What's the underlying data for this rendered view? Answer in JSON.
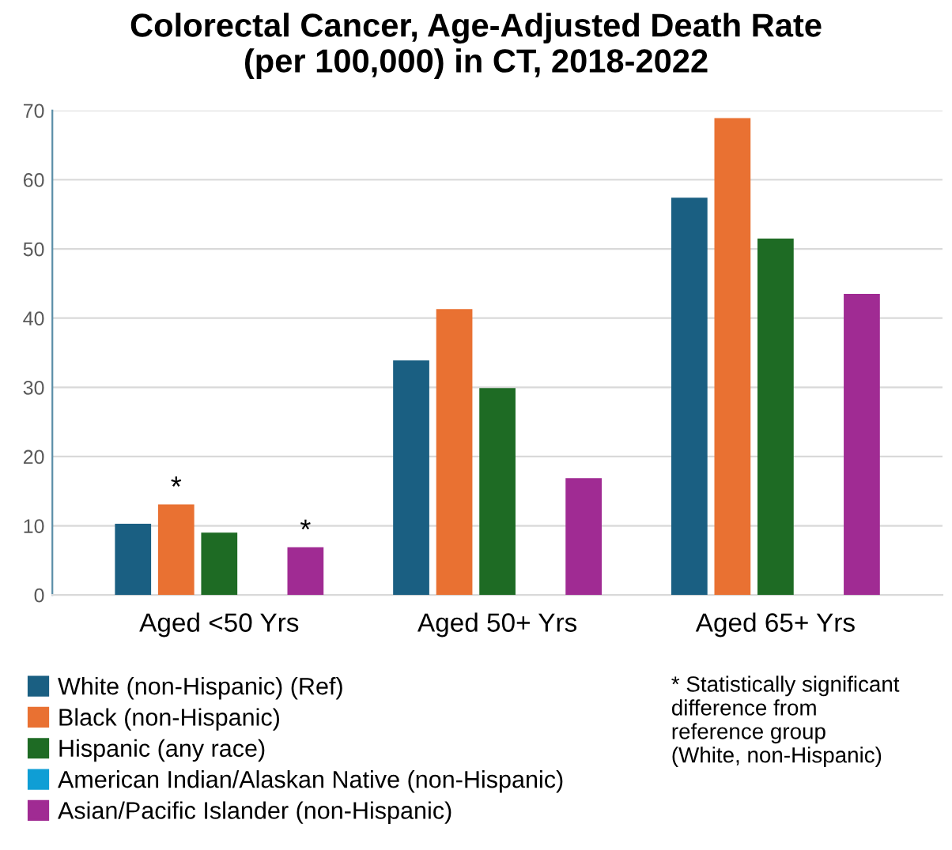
{
  "chart_data": {
    "type": "bar",
    "title": "Colorectal Cancer, Age-Adjusted Death Rate\n(per 100,000) in CT, 2018-2022",
    "categories": [
      "Aged <50 Yrs",
      "Aged 50+ Yrs",
      "Aged 65+ Yrs"
    ],
    "series": [
      {
        "name": "White (non-Hispanic) (Ref)",
        "color": "#1a5f82",
        "values": [
          10.3,
          33.9,
          57.4
        ]
      },
      {
        "name": "Black (non-Hispanic)",
        "color": "#e97132",
        "values": [
          13.1,
          41.3,
          68.9
        ],
        "value_labels": [
          "*",
          null,
          null
        ]
      },
      {
        "name": "Hispanic (any race)",
        "color": "#1e6b24",
        "values": [
          9.0,
          29.9,
          51.5
        ]
      },
      {
        "name": "American Indian/Alaskan Native (non-Hispanic)",
        "color": "#0f9ed5",
        "values": [
          null,
          null,
          null
        ]
      },
      {
        "name": "Asian/Pacific Islander (non-Hispanic)",
        "color": "#a02b93",
        "values": [
          6.9,
          16.9,
          43.5
        ],
        "value_labels": [
          "*",
          null,
          null
        ]
      }
    ],
    "ylim": [
      0,
      70
    ],
    "yticks": [
      0,
      10,
      20,
      30,
      40,
      50,
      60,
      70
    ],
    "grid": "y",
    "legend": "bottom",
    "annotations": [
      "* Statistically significant\ndifference from\nreference group\n(White, non-Hispanic)"
    ]
  }
}
